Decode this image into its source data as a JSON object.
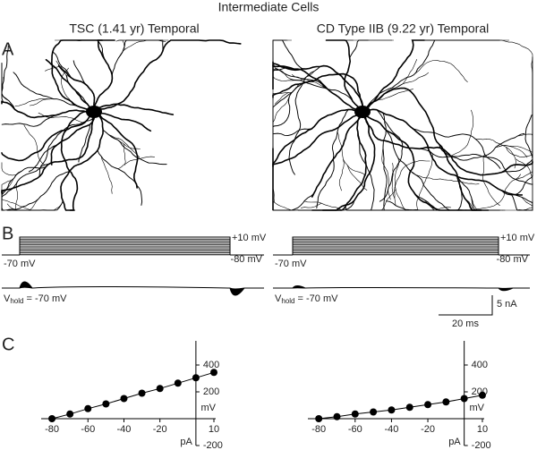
{
  "title": "Intermediate Cells",
  "panels": [
    "A",
    "B",
    "C"
  ],
  "columns": [
    {
      "title": "TSC (1.41 yr) Temporal",
      "step_top": "+10 mV",
      "hold_left": "-70 mV",
      "step_bottom": "-80 mV",
      "vhold": {
        "symbol": "V",
        "subscript": "hold",
        "text": " = -70 mV"
      }
    },
    {
      "title": "CD Type IIB (9.22 yr) Temporal",
      "step_top": "+10 mV",
      "hold_left": "-70 mV",
      "step_bottom": "-80 mV",
      "vhold": {
        "symbol": "V",
        "subscript": "hold",
        "text": " = -70 mV"
      }
    }
  ],
  "scale_bar": {
    "current": "5 nA",
    "time": "20 ms"
  },
  "chart_data": [
    {
      "type": "line",
      "markers": true,
      "color": "#000000",
      "xlabel": "mV",
      "ylabel": "pA",
      "x": [
        -80,
        -70,
        -60,
        -50,
        -40,
        -30,
        -20,
        -10,
        0,
        10
      ],
      "values": [
        0,
        35,
        75,
        110,
        150,
        190,
        225,
        265,
        305,
        345
      ],
      "xlim": [
        -86,
        11
      ],
      "ylim": [
        -200,
        580
      ],
      "xticks": [
        -80,
        -60,
        -40,
        -20,
        10
      ],
      "yticks": [
        400,
        200,
        -200
      ]
    },
    {
      "type": "line",
      "markers": true,
      "color": "#000000",
      "xlabel": "mV",
      "ylabel": "pA",
      "x": [
        -80,
        -70,
        -60,
        -50,
        -40,
        -30,
        -20,
        -10,
        0,
        10
      ],
      "values": [
        0,
        15,
        35,
        50,
        65,
        85,
        105,
        125,
        150,
        175
      ],
      "xlim": [
        -86,
        11
      ],
      "ylim": [
        -200,
        580
      ],
      "xticks": [
        -80,
        -60,
        -40,
        -20,
        10
      ],
      "yticks": [
        400,
        200,
        -200
      ]
    }
  ]
}
